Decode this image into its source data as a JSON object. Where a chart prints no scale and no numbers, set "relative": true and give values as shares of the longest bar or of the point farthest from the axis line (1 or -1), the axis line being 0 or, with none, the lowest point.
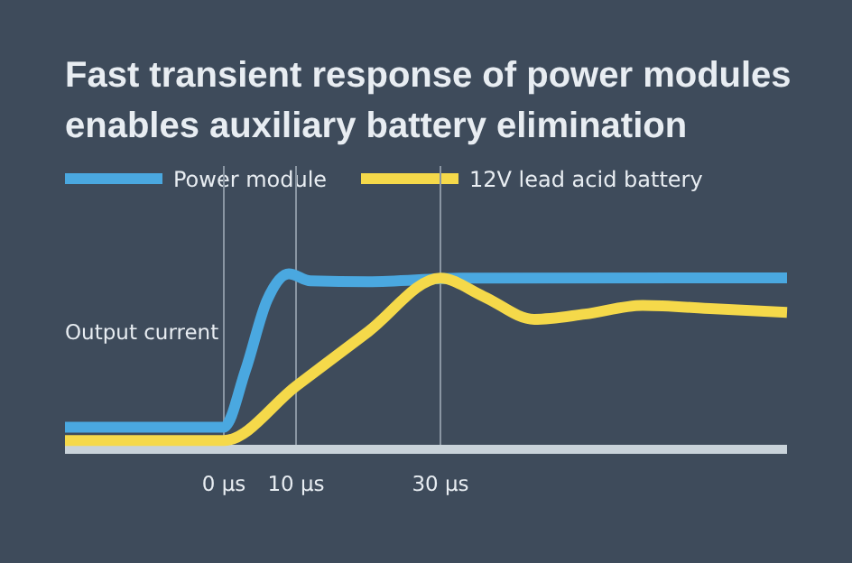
{
  "chart_data": {
    "type": "line",
    "title": "Fast transient response of power modules enables auxiliary battery elimination",
    "ylabel": "Output current",
    "relative": true,
    "xlim": [
      -22,
      78
    ],
    "xticks": [
      {
        "value": 0,
        "label": "0 µs"
      },
      {
        "value": 10,
        "label": "10 µs"
      },
      {
        "value": 30,
        "label": "30 µs"
      }
    ],
    "grid": "x",
    "legend": "top left",
    "line_style": "solid",
    "marker": "none",
    "series": [
      {
        "name": "Power module",
        "color": "#4aa8e0",
        "x": [
          -22,
          0,
          3,
          6,
          9,
          12,
          20,
          33,
          78
        ],
        "values": [
          0.126,
          0.126,
          0.45,
          0.85,
          1.0,
          0.96,
          0.955,
          0.975,
          0.977
        ]
      },
      {
        "name": "12V lead acid battery",
        "color": "#f5d94a",
        "x": [
          -22,
          0,
          10,
          20,
          30,
          36,
          43,
          50,
          58,
          68,
          78
        ],
        "values": [
          0.05,
          0.05,
          0.36,
          0.67,
          0.975,
          0.87,
          0.74,
          0.77,
          0.82,
          0.8,
          0.78
        ]
      }
    ]
  }
}
